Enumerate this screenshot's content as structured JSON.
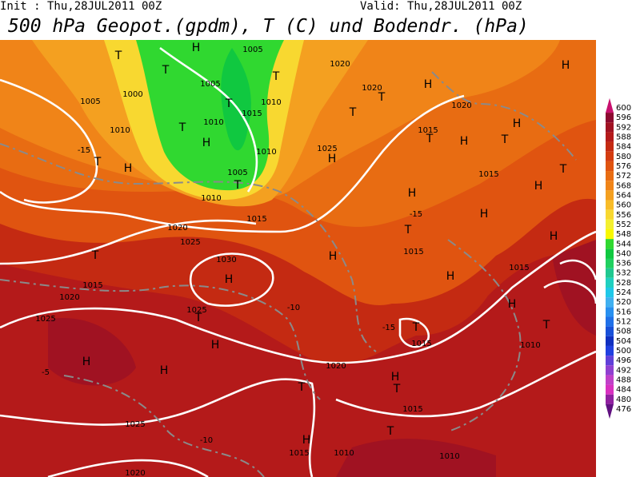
{
  "header": {
    "init": "Init : Thu,28JUL2011  00Z",
    "valid": "Valid: Thu,28JUL2011  00Z",
    "title": "500 hPa Geopot.(gpdm), T (C) und Bodendr. (hPa)"
  },
  "colorbar": [
    {
      "value": 600,
      "color": "#c8106e"
    },
    {
      "value": 596,
      "color": "#8c0a30"
    },
    {
      "value": 592,
      "color": "#a01222"
    },
    {
      "value": 588,
      "color": "#b41a1a"
    },
    {
      "value": 584,
      "color": "#c42a12"
    },
    {
      "value": 580,
      "color": "#d43c10"
    },
    {
      "value": 576,
      "color": "#e05410"
    },
    {
      "value": 572,
      "color": "#e86c12"
    },
    {
      "value": 568,
      "color": "#f08418"
    },
    {
      "value": 564,
      "color": "#f4a020"
    },
    {
      "value": 560,
      "color": "#f8bc28"
    },
    {
      "value": 556,
      "color": "#f8d830"
    },
    {
      "value": 552,
      "color": "#f4f030"
    },
    {
      "value": 548,
      "color": "#f8f800"
    },
    {
      "value": 544,
      "color": "#30d830"
    },
    {
      "value": 540,
      "color": "#10c840"
    },
    {
      "value": 536,
      "color": "#20d060"
    },
    {
      "value": 532,
      "color": "#20c890"
    },
    {
      "value": 528,
      "color": "#20d0c0"
    },
    {
      "value": 524,
      "color": "#20c8e8"
    },
    {
      "value": 520,
      "color": "#40b0f0"
    },
    {
      "value": 516,
      "color": "#2890f0"
    },
    {
      "value": 512,
      "color": "#2070e8"
    },
    {
      "value": 508,
      "color": "#1850d8"
    },
    {
      "value": 504,
      "color": "#1030c0"
    },
    {
      "value": 500,
      "color": "#2040e0"
    },
    {
      "value": 496,
      "color": "#6040d8"
    },
    {
      "value": 492,
      "color": "#9040d0"
    },
    {
      "value": 488,
      "color": "#c040c8"
    },
    {
      "value": 484,
      "color": "#d830c0"
    },
    {
      "value": 480,
      "color": "#9020a0"
    },
    {
      "value": 476,
      "color": "#601080"
    }
  ],
  "labels": [
    "T",
    "H",
    1005,
    "T",
    1005,
    "T",
    1000,
    1005,
    "T",
    1010,
    1015,
    "T",
    1010,
    "H",
    1010,
    -15,
    "T",
    "H",
    1010,
    1005,
    "T",
    1010,
    1025,
    "H",
    "T",
    1020,
    "H",
    1015,
    "T",
    "H",
    "T",
    "H",
    "H",
    "T",
    1015,
    "H",
    "H",
    1015,
    1020,
    1025,
    "T",
    1030,
    "H",
    1015,
    1020,
    1025,
    1025,
    "T",
    "H",
    "H",
    "H",
    -5,
    "T",
    1020,
    "H",
    "T",
    1015,
    "T",
    "H",
    1015,
    1010,
    1010,
    1025,
    1020,
    "T",
    1015,
    "H",
    "H",
    1015,
    "T",
    1010,
    1015,
    "T",
    "H",
    -15,
    "H",
    -10,
    -15,
    -10,
    1020,
    1020,
    "T",
    "H"
  ]
}
